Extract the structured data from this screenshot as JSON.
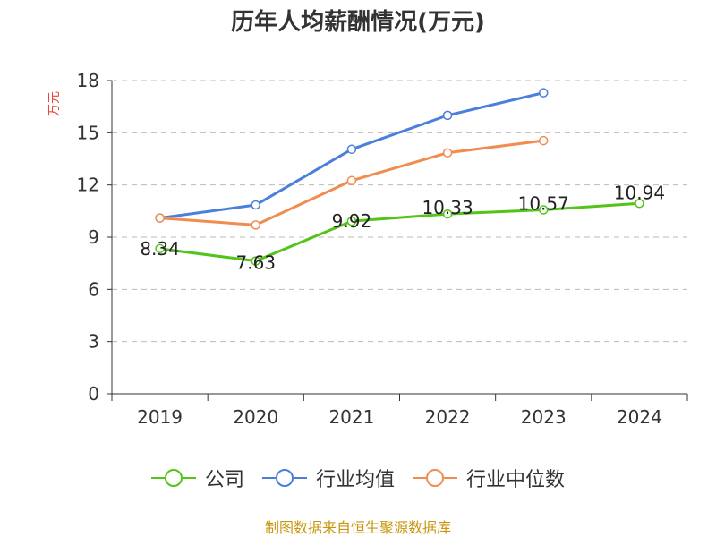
{
  "chart_data": {
    "type": "line",
    "title": "历年人均薪酬情况(万元)",
    "ylabel": "万元",
    "xlabel": "",
    "categories": [
      "2019",
      "2020",
      "2021",
      "2022",
      "2023",
      "2024"
    ],
    "ylim": [
      0,
      18
    ],
    "yticks": [
      0,
      3,
      6,
      9,
      12,
      15,
      18
    ],
    "grid": true,
    "legend_position": "bottom",
    "series": [
      {
        "name": "公司",
        "color": "#52c41a",
        "values": [
          8.34,
          7.63,
          9.92,
          10.33,
          10.57,
          10.94
        ],
        "labels": [
          "8.34",
          "7.63",
          "9.92",
          "10.33",
          "10.57",
          "10.94"
        ]
      },
      {
        "name": "行业均值",
        "color": "#4a7fdb",
        "values": [
          10.1,
          10.85,
          14.05,
          16.0,
          17.3,
          null
        ]
      },
      {
        "name": "行业中位数",
        "color": "#f08c50",
        "values": [
          10.1,
          9.7,
          12.25,
          13.85,
          14.55,
          null
        ]
      }
    ]
  },
  "source_text": "制图数据来自恒生聚源数据库"
}
